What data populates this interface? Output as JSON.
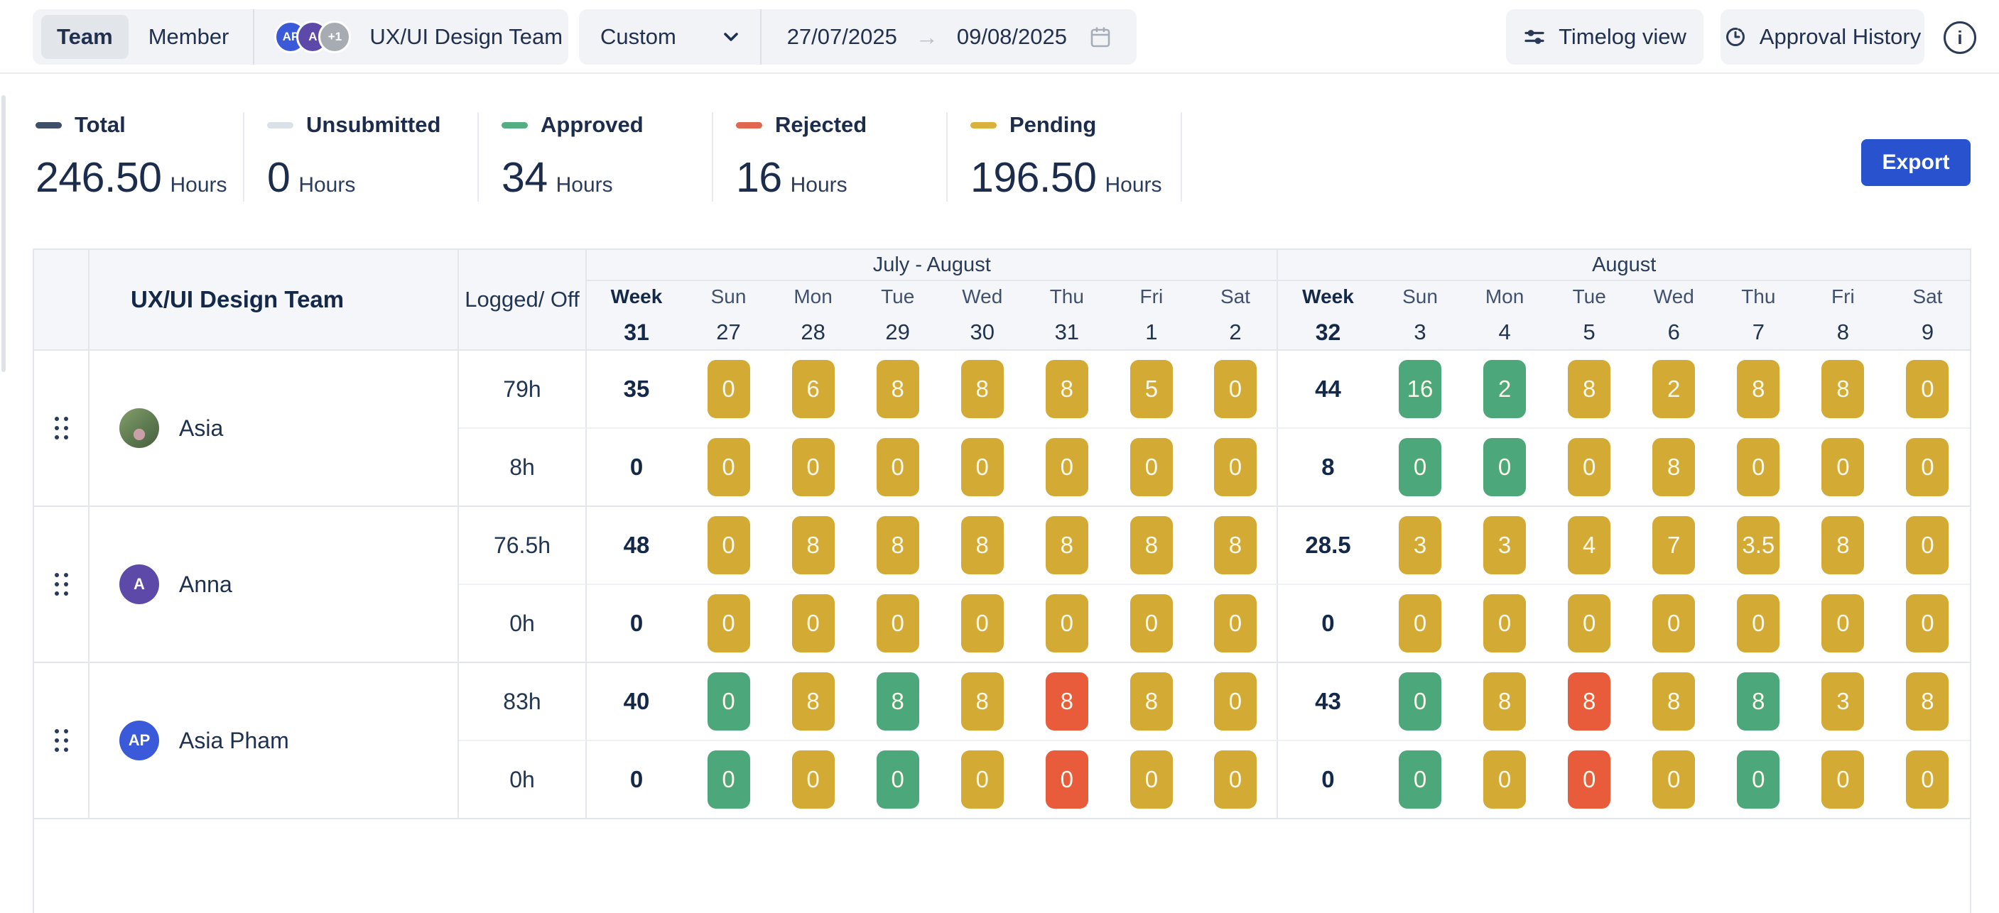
{
  "topbar": {
    "view_toggle": {
      "options": [
        "Team",
        "Member"
      ],
      "selected": "Team"
    },
    "avatars": [
      {
        "text": "AP",
        "bg": "#3a5ad9"
      },
      {
        "text": "A",
        "bg": "#5d4aa8"
      },
      {
        "text": "+1",
        "bg": "#a7acb3"
      }
    ],
    "team_name": "UX/UI Design Team",
    "preset": "Custom",
    "date_from": "27/07/2025",
    "date_to": "09/08/2025",
    "buttons": {
      "timelog": "Timelog view",
      "approval": "Approval History"
    }
  },
  "summary": {
    "export_label": "Export",
    "stats": [
      {
        "label": "Total",
        "value": "246.50",
        "unit": "Hours",
        "dash": "#3f4f68"
      },
      {
        "label": "Unsubmitted",
        "value": "0",
        "unit": "Hours",
        "dash": "#dce1e8"
      },
      {
        "label": "Approved",
        "value": "34",
        "unit": "Hours",
        "dash": "#54ae83"
      },
      {
        "label": "Rejected",
        "value": "16",
        "unit": "Hours",
        "dash": "#e2674f"
      },
      {
        "label": "Pending",
        "value": "196.50",
        "unit": "Hours",
        "dash": "#d9b13c"
      }
    ]
  },
  "table": {
    "team_header": "UX/UI Design Team",
    "logged_header": "Logged/ Off",
    "week_label": "Week",
    "status_colors": {
      "p": "#d3aa33",
      "a": "#4ca77a",
      "r": "#e85c3c"
    },
    "weeks": [
      {
        "group": "July - August",
        "week_no": "31",
        "days": [
          [
            "Sun",
            "27"
          ],
          [
            "Mon",
            "28"
          ],
          [
            "Tue",
            "29"
          ],
          [
            "Wed",
            "30"
          ],
          [
            "Thu",
            "31"
          ],
          [
            "Fri",
            "1"
          ],
          [
            "Sat",
            "2"
          ]
        ]
      },
      {
        "group": "August",
        "week_no": "32",
        "days": [
          [
            "Sun",
            "3"
          ],
          [
            "Mon",
            "4"
          ],
          [
            "Tue",
            "5"
          ],
          [
            "Wed",
            "6"
          ],
          [
            "Thu",
            "7"
          ],
          [
            "Fri",
            "8"
          ],
          [
            "Sat",
            "9"
          ]
        ]
      }
    ],
    "members": [
      {
        "name": "Asia",
        "avatar": {
          "kind": "photo",
          "text": "",
          "bg": "#7e9a67"
        },
        "rows": [
          {
            "logged": "79h",
            "weeks": [
              {
                "total": "35",
                "cells": [
                  [
                    "0",
                    "p"
                  ],
                  [
                    "6",
                    "p"
                  ],
                  [
                    "8",
                    "p"
                  ],
                  [
                    "8",
                    "p"
                  ],
                  [
                    "8",
                    "p"
                  ],
                  [
                    "5",
                    "p"
                  ],
                  [
                    "0",
                    "p"
                  ]
                ]
              },
              {
                "total": "44",
                "cells": [
                  [
                    "16",
                    "a"
                  ],
                  [
                    "2",
                    "a"
                  ],
                  [
                    "8",
                    "p"
                  ],
                  [
                    "2",
                    "p"
                  ],
                  [
                    "8",
                    "p"
                  ],
                  [
                    "8",
                    "p"
                  ],
                  [
                    "0",
                    "p"
                  ]
                ]
              }
            ]
          },
          {
            "logged": "8h",
            "weeks": [
              {
                "total": "0",
                "cells": [
                  [
                    "0",
                    "p"
                  ],
                  [
                    "0",
                    "p"
                  ],
                  [
                    "0",
                    "p"
                  ],
                  [
                    "0",
                    "p"
                  ],
                  [
                    "0",
                    "p"
                  ],
                  [
                    "0",
                    "p"
                  ],
                  [
                    "0",
                    "p"
                  ]
                ]
              },
              {
                "total": "8",
                "cells": [
                  [
                    "0",
                    "a"
                  ],
                  [
                    "0",
                    "a"
                  ],
                  [
                    "0",
                    "p"
                  ],
                  [
                    "8",
                    "p"
                  ],
                  [
                    "0",
                    "p"
                  ],
                  [
                    "0",
                    "p"
                  ],
                  [
                    "0",
                    "p"
                  ]
                ]
              }
            ]
          }
        ]
      },
      {
        "name": "Anna",
        "avatar": {
          "kind": "initials",
          "text": "A",
          "bg": "#5d4aa8"
        },
        "rows": [
          {
            "logged": "76.5h",
            "weeks": [
              {
                "total": "48",
                "cells": [
                  [
                    "0",
                    "p"
                  ],
                  [
                    "8",
                    "p"
                  ],
                  [
                    "8",
                    "p"
                  ],
                  [
                    "8",
                    "p"
                  ],
                  [
                    "8",
                    "p"
                  ],
                  [
                    "8",
                    "p"
                  ],
                  [
                    "8",
                    "p"
                  ]
                ]
              },
              {
                "total": "28.5",
                "cells": [
                  [
                    "3",
                    "p"
                  ],
                  [
                    "3",
                    "p"
                  ],
                  [
                    "4",
                    "p"
                  ],
                  [
                    "7",
                    "p"
                  ],
                  [
                    "3.5",
                    "p"
                  ],
                  [
                    "8",
                    "p"
                  ],
                  [
                    "0",
                    "p"
                  ]
                ]
              }
            ]
          },
          {
            "logged": "0h",
            "weeks": [
              {
                "total": "0",
                "cells": [
                  [
                    "0",
                    "p"
                  ],
                  [
                    "0",
                    "p"
                  ],
                  [
                    "0",
                    "p"
                  ],
                  [
                    "0",
                    "p"
                  ],
                  [
                    "0",
                    "p"
                  ],
                  [
                    "0",
                    "p"
                  ],
                  [
                    "0",
                    "p"
                  ]
                ]
              },
              {
                "total": "0",
                "cells": [
                  [
                    "0",
                    "p"
                  ],
                  [
                    "0",
                    "p"
                  ],
                  [
                    "0",
                    "p"
                  ],
                  [
                    "0",
                    "p"
                  ],
                  [
                    "0",
                    "p"
                  ],
                  [
                    "0",
                    "p"
                  ],
                  [
                    "0",
                    "p"
                  ]
                ]
              }
            ]
          }
        ]
      },
      {
        "name": "Asia Pham",
        "avatar": {
          "kind": "initials",
          "text": "AP",
          "bg": "#3a5ad9"
        },
        "rows": [
          {
            "logged": "83h",
            "weeks": [
              {
                "total": "40",
                "cells": [
                  [
                    "0",
                    "a"
                  ],
                  [
                    "8",
                    "p"
                  ],
                  [
                    "8",
                    "a"
                  ],
                  [
                    "8",
                    "p"
                  ],
                  [
                    "8",
                    "r"
                  ],
                  [
                    "8",
                    "p"
                  ],
                  [
                    "0",
                    "p"
                  ]
                ]
              },
              {
                "total": "43",
                "cells": [
                  [
                    "0",
                    "a"
                  ],
                  [
                    "8",
                    "p"
                  ],
                  [
                    "8",
                    "r"
                  ],
                  [
                    "8",
                    "p"
                  ],
                  [
                    "8",
                    "a"
                  ],
                  [
                    "3",
                    "p"
                  ],
                  [
                    "8",
                    "p"
                  ]
                ]
              }
            ]
          },
          {
            "logged": "0h",
            "weeks": [
              {
                "total": "0",
                "cells": [
                  [
                    "0",
                    "a"
                  ],
                  [
                    "0",
                    "p"
                  ],
                  [
                    "0",
                    "a"
                  ],
                  [
                    "0",
                    "p"
                  ],
                  [
                    "0",
                    "r"
                  ],
                  [
                    "0",
                    "p"
                  ],
                  [
                    "0",
                    "p"
                  ]
                ]
              },
              {
                "total": "0",
                "cells": [
                  [
                    "0",
                    "a"
                  ],
                  [
                    "0",
                    "p"
                  ],
                  [
                    "0",
                    "r"
                  ],
                  [
                    "0",
                    "p"
                  ],
                  [
                    "0",
                    "a"
                  ],
                  [
                    "0",
                    "p"
                  ],
                  [
                    "0",
                    "p"
                  ]
                ]
              }
            ]
          }
        ]
      }
    ]
  }
}
